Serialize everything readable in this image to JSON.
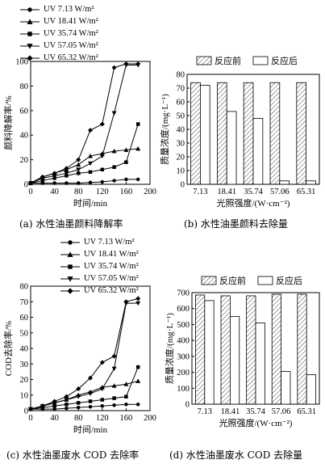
{
  "panels": [
    {
      "id": "a",
      "caption": "(a) 水性油墨颜料降解率",
      "chart_data": {
        "type": "line",
        "xlabel": "时间/min",
        "ylabel": "颜料降解率/%",
        "xlim": [
          0,
          200
        ],
        "ylim": [
          0,
          100
        ],
        "xticks": [
          0,
          40,
          80,
          120,
          160,
          200
        ],
        "yticks": [
          0,
          20,
          40,
          60,
          80,
          100
        ],
        "x": [
          0,
          20,
          40,
          60,
          80,
          100,
          120,
          140,
          160,
          180
        ],
        "series": [
          {
            "name": "UV 7.13 W/m²",
            "marker": "circle",
            "values": [
              1,
              1,
              1,
              1,
              1,
              1.5,
              2,
              3,
              4,
              4
            ]
          },
          {
            "name": "UV 18.41 W/m²",
            "marker": "triangle-up",
            "values": [
              1,
              6,
              9,
              12,
              16,
              23,
              25,
              27,
              28,
              29
            ]
          },
          {
            "name": "UV 35.74 W/m²",
            "marker": "square",
            "values": [
              1,
              3,
              5,
              7,
              9,
              10,
              12,
              14,
              18,
              49
            ]
          },
          {
            "name": "UV 57.05 W/m²",
            "marker": "triangle-down",
            "values": [
              1,
              5,
              7,
              9,
              12,
              17,
              23,
              58,
              97,
              97
            ]
          },
          {
            "name": "UV 65.32 W/m²",
            "marker": "diamond",
            "values": [
              1,
              6,
              9,
              13,
              20,
              44,
              49,
              95,
              98,
              98
            ]
          }
        ]
      }
    },
    {
      "id": "b",
      "caption": "(b) 水性油墨颜料去除量",
      "chart_data": {
        "type": "bar",
        "xlabel": "光照强度/(W·cm⁻²)",
        "ylabel": "质量浓度/(mg·L⁻¹)",
        "ylim": [
          0,
          80
        ],
        "yticks": [
          0,
          10,
          20,
          30,
          40,
          50,
          60,
          70,
          80
        ],
        "categories": [
          "7.13",
          "18.41",
          "35.74",
          "57.06",
          "65.31"
        ],
        "series": [
          {
            "name": "反应前",
            "values": [
              74,
              74,
              74,
              74,
              74
            ]
          },
          {
            "name": "反应后",
            "values": [
              72,
              53,
              48,
              2.5,
              2.5
            ]
          }
        ]
      }
    },
    {
      "id": "c",
      "caption": "(c) 水性油墨废水 COD 去除率",
      "chart_data": {
        "type": "line",
        "xlabel": "时间/min",
        "ylabel": "COD去除率/%",
        "xlim": [
          0,
          200
        ],
        "ylim": [
          0,
          80
        ],
        "xticks": [
          0,
          40,
          80,
          120,
          160,
          200
        ],
        "yticks": [
          0,
          10,
          20,
          30,
          40,
          50,
          60,
          70,
          80
        ],
        "x": [
          0,
          20,
          40,
          60,
          80,
          100,
          120,
          140,
          160,
          180
        ],
        "series": [
          {
            "name": "UV 7.13 W/m²",
            "marker": "circle",
            "values": [
              1,
              1,
              1,
              1.5,
              2,
              2.5,
              3,
              3.5,
              4,
              4
            ]
          },
          {
            "name": "UV 18.41 W/m²",
            "marker": "triangle-up",
            "values": [
              1,
              3,
              5,
              7,
              10,
              12,
              15,
              16,
              17,
              19
            ]
          },
          {
            "name": "UV 35.74 W/m²",
            "marker": "square",
            "values": [
              1,
              2,
              3,
              4,
              5,
              6,
              7,
              8,
              9,
              28
            ]
          },
          {
            "name": "UV 57.05 W/m²",
            "marker": "triangle-down",
            "values": [
              1,
              3,
              5,
              7,
              9,
              11,
              14,
              27,
              69,
              69
            ]
          },
          {
            "name": "UV 65.32 W/m²",
            "marker": "diamond",
            "values": [
              1,
              3,
              6,
              9,
              14,
              21,
              31,
              35,
              70,
              72
            ]
          }
        ]
      }
    },
    {
      "id": "d",
      "caption": "(d) 水性油墨废水 COD 去除量",
      "chart_data": {
        "type": "bar",
        "xlabel": "光照强度/(W·cm⁻²)",
        "ylabel": "质量浓度/(mg·L⁻¹)",
        "ylim": [
          0,
          700
        ],
        "yticks": [
          0,
          100,
          200,
          300,
          400,
          500,
          600,
          700
        ],
        "categories": [
          "7.13",
          "18.41",
          "35.74",
          "57.06",
          "65.31"
        ],
        "series": [
          {
            "name": "反应前",
            "values": [
              685,
              680,
              680,
              690,
              690
            ]
          },
          {
            "name": "反应后",
            "values": [
              650,
              550,
              510,
              205,
              185
            ]
          }
        ]
      }
    }
  ]
}
